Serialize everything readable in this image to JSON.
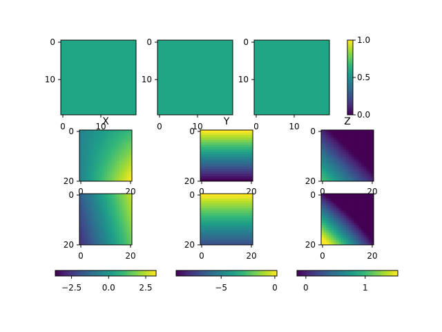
{
  "chart_data": [
    {
      "type": "heatmap",
      "ticks_x": [
        "0",
        "10"
      ],
      "ticks_y": [
        "0",
        "10"
      ],
      "value": 0.5,
      "colorbar": {
        "ticks": [
          "0.0",
          "0.5",
          "1.0"
        ],
        "range": [
          0,
          1
        ]
      }
    },
    {
      "type": "heatmap",
      "ticks_x": [
        "0",
        "10"
      ],
      "ticks_y": [
        "0",
        "10"
      ],
      "value": 0.5
    },
    {
      "type": "heatmap",
      "ticks_x": [
        "0",
        "10"
      ],
      "ticks_y": [
        "0",
        "10"
      ],
      "value": 0.5
    },
    {
      "type": "heatmap",
      "title": "X",
      "ticks_x": [
        "0",
        "20"
      ],
      "ticks_y": [
        "0",
        "20"
      ],
      "pattern": "x1"
    },
    {
      "type": "heatmap",
      "title": "Y",
      "ticks_x": [
        "0",
        "20"
      ],
      "ticks_y": [
        "0",
        "20"
      ],
      "pattern": "y1"
    },
    {
      "type": "heatmap",
      "title": "Z",
      "ticks_x": [
        "0",
        "20"
      ],
      "ticks_y": [
        "0",
        "20"
      ],
      "pattern": "z1"
    },
    {
      "type": "heatmap",
      "ticks_x": [
        "0",
        "20"
      ],
      "ticks_y": [
        "0",
        "20"
      ],
      "pattern": "x2"
    },
    {
      "type": "heatmap",
      "ticks_x": [
        "0",
        "20"
      ],
      "ticks_y": [
        "0",
        "20"
      ],
      "pattern": "y2"
    },
    {
      "type": "heatmap",
      "ticks_x": [
        "0",
        "20"
      ],
      "ticks_y": [
        "0",
        "20"
      ],
      "pattern": "z2"
    },
    {
      "type": "colorbar",
      "ticks": [
        "−2.5",
        "0.0",
        "2.5"
      ],
      "range": [
        -3.6,
        3.2
      ],
      "tick_values": [
        -2.5,
        0,
        2.5
      ]
    },
    {
      "type": "colorbar",
      "ticks": [
        "−5",
        "0"
      ],
      "range": [
        -9.2,
        0.2
      ],
      "tick_values": [
        -5,
        0
      ]
    },
    {
      "type": "colorbar",
      "ticks": [
        "0",
        "1"
      ],
      "range": [
        -0.15,
        1.55
      ],
      "tick_values": [
        0,
        1
      ]
    }
  ]
}
